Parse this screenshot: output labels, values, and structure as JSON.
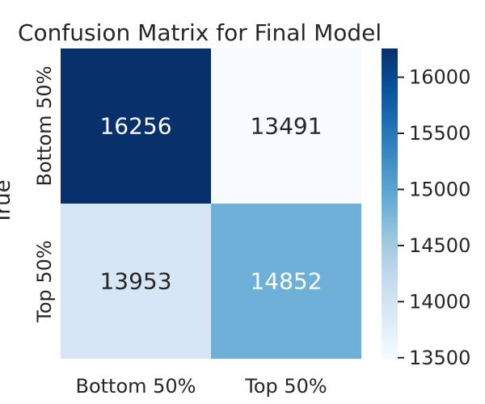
{
  "chart_data": {
    "type": "heatmap",
    "title": "Confusion Matrix for Final Model",
    "xlabel": "",
    "ylabel": "True",
    "x_categories": [
      "Bottom 50%",
      "Top 50%"
    ],
    "y_categories": [
      "Bottom 50%",
      "Top 50%"
    ],
    "values": [
      [
        16256,
        13491
      ],
      [
        13953,
        14852
      ]
    ],
    "colormap": "Blues",
    "colorbar": {
      "vmin": 13491,
      "vmax": 16256,
      "ticks": [
        13500,
        14000,
        14500,
        15000,
        15500,
        16000
      ]
    },
    "colors": {
      "low": "#f7fbff",
      "high": "#08306b",
      "text_light": "#ffffff",
      "text_dark": "#262626"
    }
  }
}
